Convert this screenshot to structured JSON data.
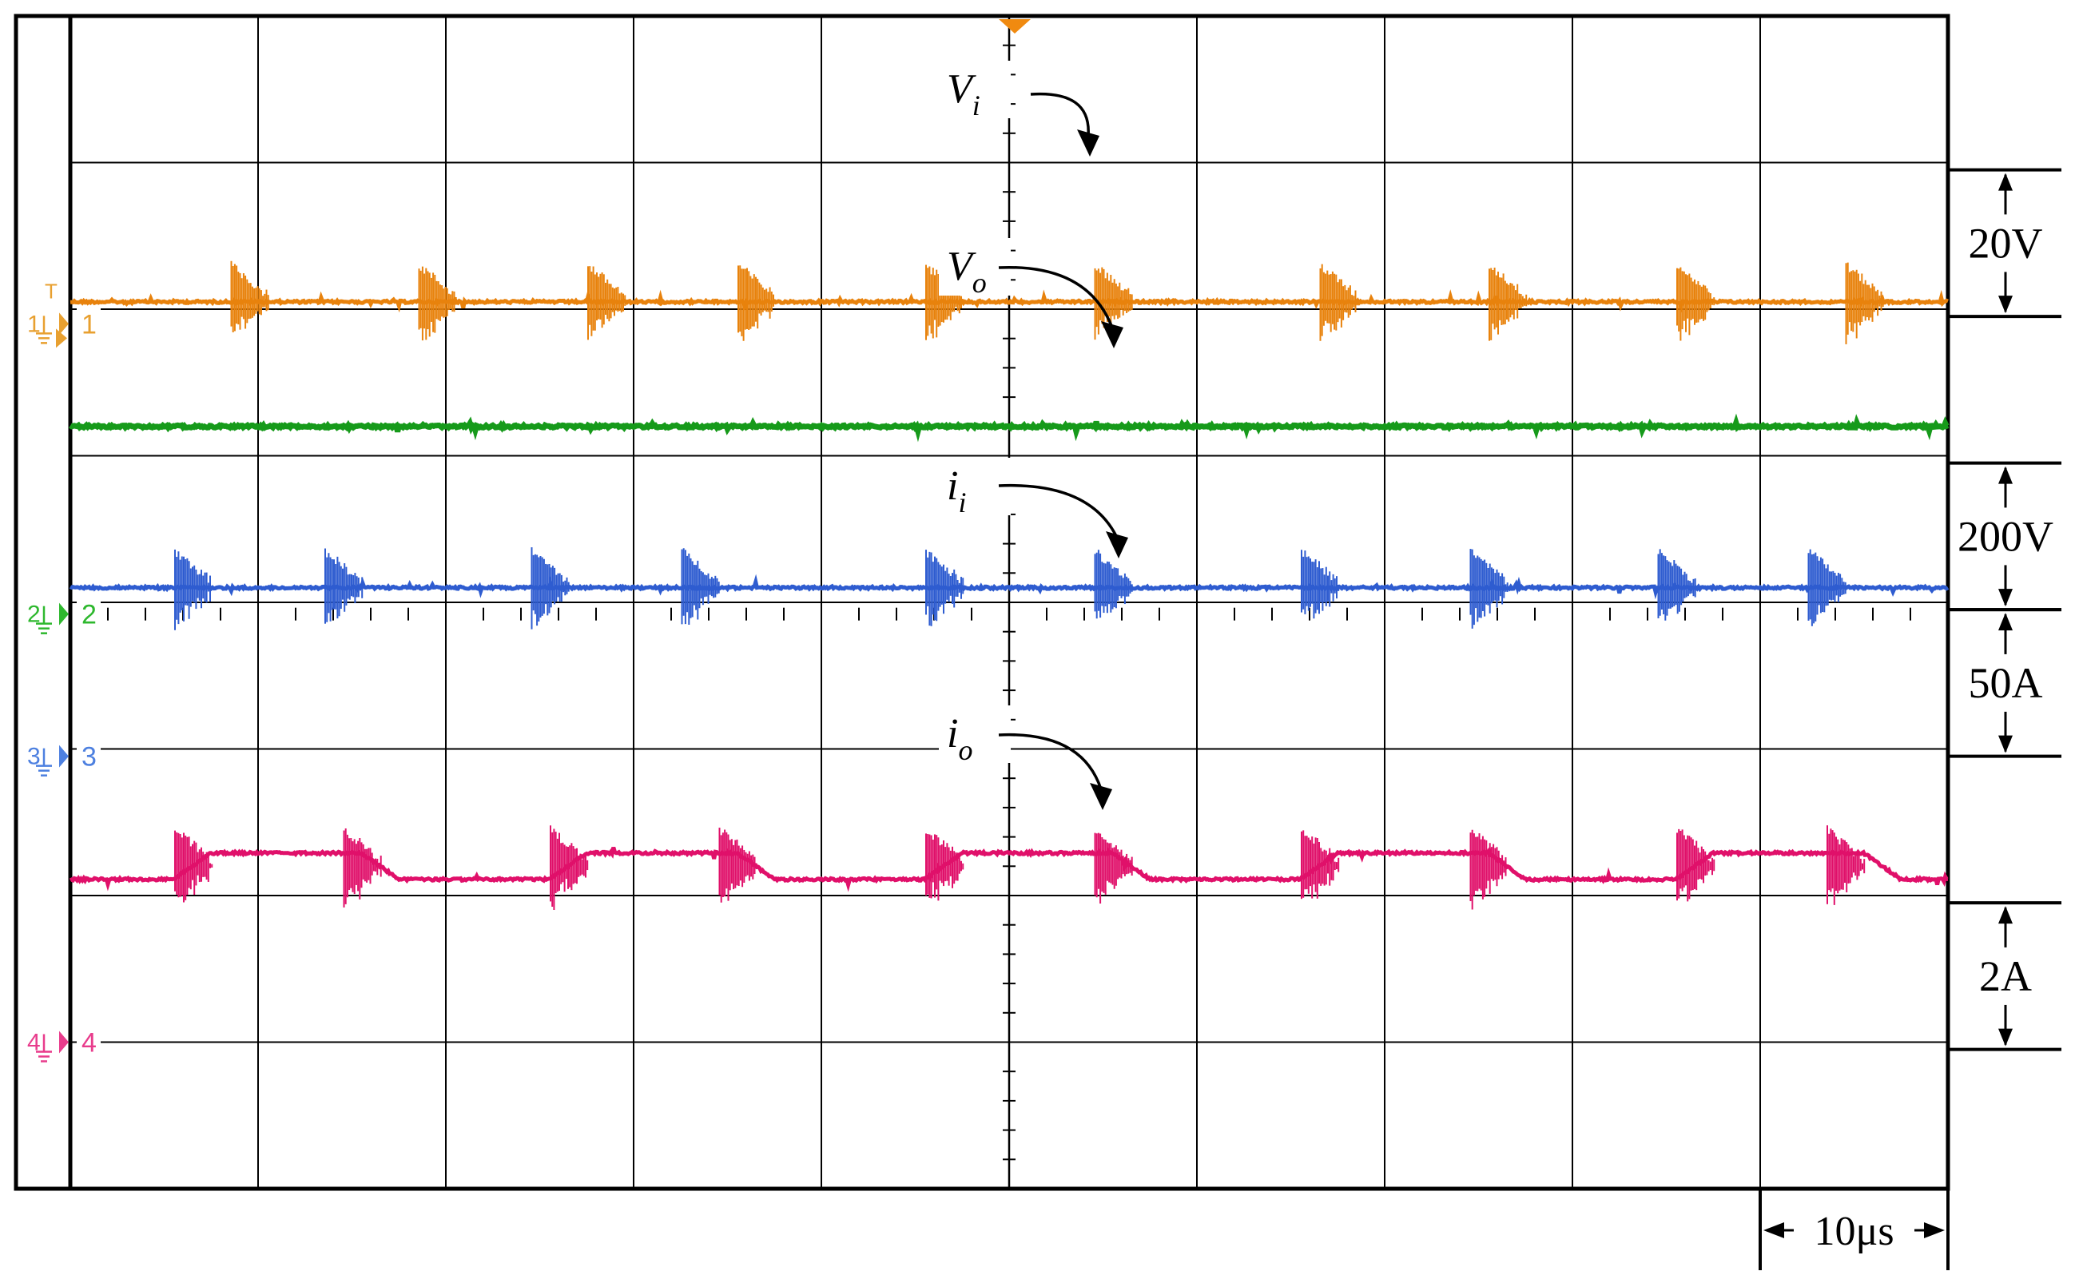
{
  "chart_data": {
    "type": "line",
    "title": "",
    "xlabel": "",
    "ylabel": "",
    "grid": true,
    "grid_divisions": {
      "x": 10,
      "y": 8
    },
    "time_per_div": "10μs",
    "x_range": [
      0,
      100
    ],
    "x_unit": "μs",
    "series": [
      {
        "name": "V_i",
        "label_main": "V",
        "label_sub": "i",
        "channel": 1,
        "color": "#E8820C",
        "scale": "20V",
        "level_div": 6.05,
        "ground_div": 5.9,
        "ripple": false,
        "spikes": [
          0.9,
          1.9,
          2.8,
          3.6,
          4.6,
          5.5,
          6.7,
          7.6,
          8.6,
          9.5
        ]
      },
      {
        "name": "V_o",
        "label_main": "V",
        "label_sub": "o",
        "channel": 2,
        "color": "#169A1A",
        "scale": "200V",
        "level_div": 5.2,
        "ground_div": 3.92,
        "ripple": false,
        "spikes": []
      },
      {
        "name": "i_i",
        "label_main": "i",
        "label_sub": "i",
        "channel": 3,
        "color": "#2E5CD0",
        "scale": "50A",
        "level_div": 4.1,
        "ground_div": 2.95,
        "ripple": false,
        "spikes": [
          0.6,
          1.4,
          2.5,
          3.3,
          4.6,
          5.5,
          6.6,
          7.5,
          8.5,
          9.3
        ]
      },
      {
        "name": "i_o",
        "label_main": "i",
        "label_sub": "o",
        "channel": 4,
        "color": "#E0106A",
        "scale": "2A",
        "level_div": 2.2,
        "ground_div": 1.0,
        "ripple": true,
        "ripple_amplitude_div": 0.18,
        "ripple_period_div": 2.0,
        "ripple_phase_div": 0.55,
        "spikes": [
          0.6,
          1.5,
          2.6,
          3.5,
          4.6,
          5.5,
          6.6,
          7.5,
          8.6,
          9.4
        ]
      }
    ],
    "scale_bars": [
      {
        "label": "20V",
        "from_div": 6.95,
        "to_div": 5.95
      },
      {
        "label": "200V",
        "from_div": 4.95,
        "to_div": 3.95
      },
      {
        "label": "50A",
        "from_div": 3.95,
        "to_div": 2.95
      },
      {
        "label": "2A",
        "from_div": 1.95,
        "to_div": 0.95
      }
    ],
    "time_bar": {
      "label": "10μs",
      "from_div": 9.0,
      "to_div": 10.0
    },
    "trigger_level_div": 6.02
  }
}
